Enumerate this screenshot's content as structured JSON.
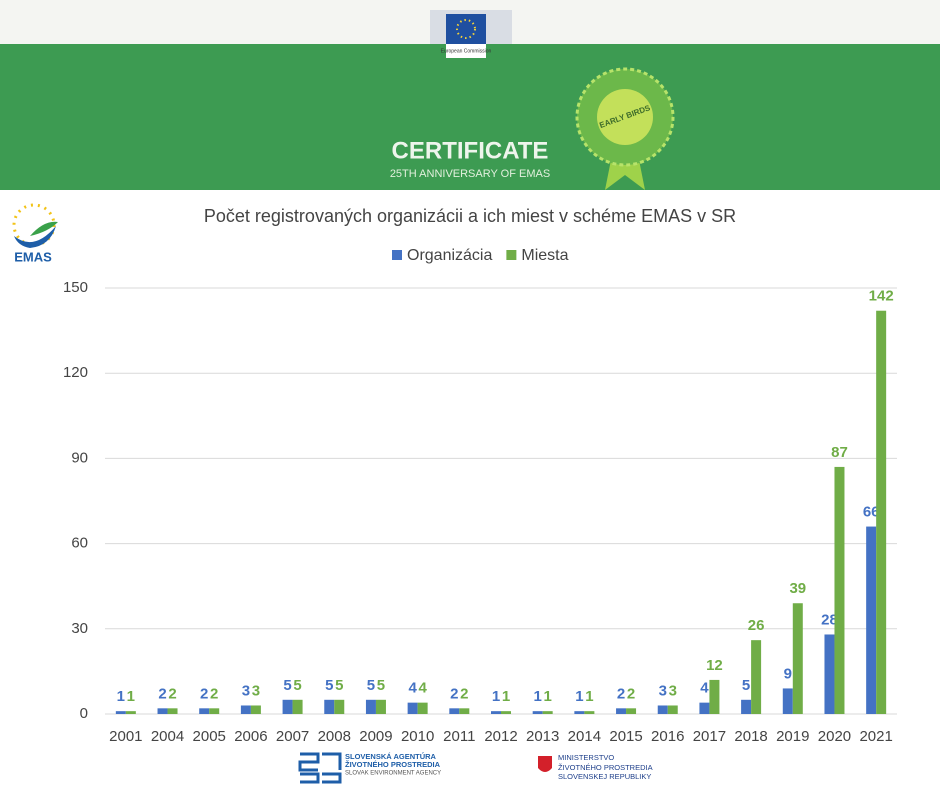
{
  "header": {
    "eu_logo": "European Commission",
    "title": "CERTIFICATE",
    "subtitle": "25TH ANNIVERSARY OF EMAS",
    "badge": "EARLY BIRDS"
  },
  "emas_logo": "EMAS",
  "footer": {
    "agency": [
      "SLOVENSKÁ AGENTÚRA",
      "ŽIVOTNÉHO PROSTREDIA",
      "SLOVAK ENVIRONMENT AGENCY"
    ],
    "ministry": [
      "MINISTERSTVO",
      "ŽIVOTNÉHO PROSTREDIA",
      "SLOVENSKEJ REPUBLIKY"
    ]
  },
  "chart_data": {
    "type": "bar",
    "title": "Počet registrovaných organizácii a ich miest v schéme EMAS v SR",
    "categories": [
      "2001",
      "2004",
      "2005",
      "2006",
      "2007",
      "2008",
      "2009",
      "2010",
      "2011",
      "2012",
      "2013",
      "2014",
      "2015",
      "2016",
      "2017",
      "2018",
      "2019",
      "2020",
      "2021"
    ],
    "series": [
      {
        "name": "Organizácia",
        "color": "#4472c4",
        "values": [
          1,
          2,
          2,
          3,
          5,
          5,
          5,
          4,
          2,
          1,
          1,
          1,
          2,
          3,
          4,
          5,
          9,
          28,
          66
        ]
      },
      {
        "name": "Miesta",
        "color": "#70ad47",
        "values": [
          1,
          2,
          2,
          3,
          5,
          5,
          5,
          4,
          2,
          1,
          1,
          1,
          2,
          3,
          12,
          26,
          39,
          87,
          142
        ]
      }
    ],
    "ylim": [
      0,
      150
    ],
    "yticks": [
      0,
      30,
      60,
      90,
      120,
      150
    ],
    "grid": true,
    "legend": "top",
    "data_labels": true
  }
}
